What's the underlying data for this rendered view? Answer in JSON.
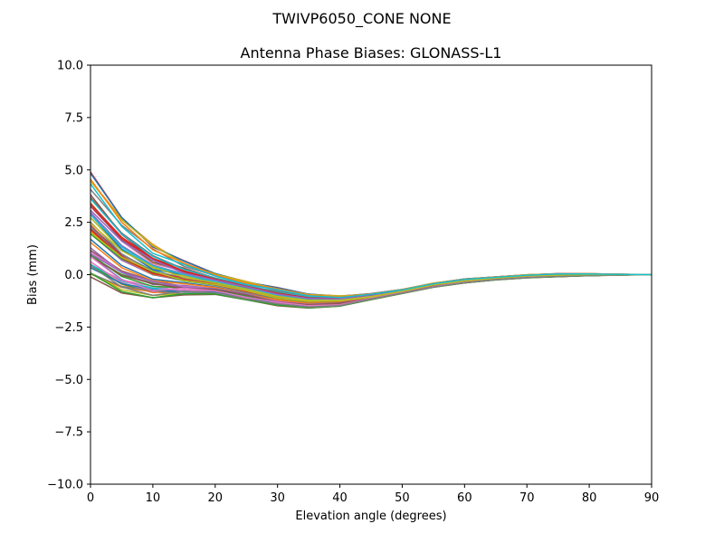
{
  "figure": {
    "suptitle": "TWIVP6050_CONE  NONE"
  },
  "chart_data": {
    "type": "line",
    "title": "Antenna Phase Biases: GLONASS-L1",
    "xlabel": "Elevation angle (degrees)",
    "ylabel": "Bias (mm)",
    "xlim": [
      0,
      90
    ],
    "ylim": [
      -10,
      10
    ],
    "xticks": [
      0,
      10,
      20,
      30,
      40,
      50,
      60,
      70,
      80,
      90
    ],
    "yticks": [
      -10.0,
      -7.5,
      -5.0,
      -2.5,
      0.0,
      2.5,
      5.0,
      7.5,
      10.0
    ],
    "xtick_labels": [
      "0",
      "10",
      "20",
      "30",
      "40",
      "50",
      "60",
      "70",
      "80",
      "90"
    ],
    "ytick_labels": [
      "−10.0",
      "−7.5",
      "−5.0",
      "−2.5",
      "0.0",
      "2.5",
      "5.0",
      "7.5",
      "10.0"
    ],
    "grid": false,
    "legend": "none",
    "x": [
      0,
      5,
      10,
      15,
      20,
      25,
      30,
      35,
      40,
      45,
      50,
      55,
      60,
      65,
      70,
      75,
      80,
      85,
      90
    ],
    "envelope_upper": [
      5.0,
      2.9,
      1.5,
      0.7,
      0.1,
      -0.3,
      -0.6,
      -0.9,
      -1.0,
      -0.9,
      -0.7,
      -0.4,
      -0.2,
      -0.1,
      0.0,
      0.05,
      0.05,
      0.02,
      0.0
    ],
    "envelope_lower": [
      -0.2,
      -0.9,
      -1.1,
      -1.0,
      -0.95,
      -1.2,
      -1.5,
      -1.6,
      -1.5,
      -1.2,
      -0.9,
      -0.6,
      -0.4,
      -0.25,
      -0.15,
      -0.1,
      -0.05,
      -0.02,
      0.0
    ],
    "series_count": 60,
    "colors": [
      "#1f77b4",
      "#ff7f0e",
      "#2ca02c",
      "#d62728",
      "#9467bd",
      "#8c564b",
      "#e377c2",
      "#7f7f7f",
      "#bcbd22",
      "#17becf"
    ]
  }
}
